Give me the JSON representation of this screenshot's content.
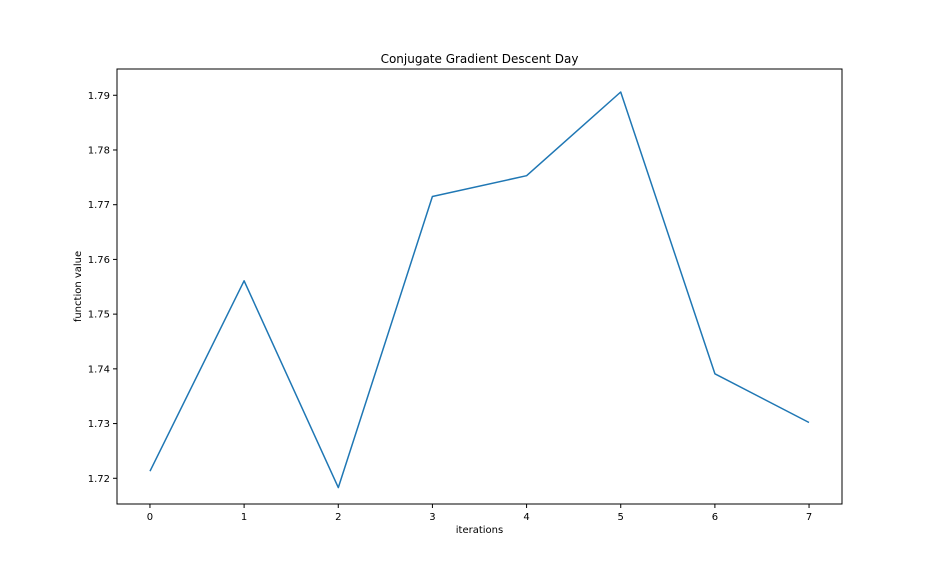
{
  "chart_data": {
    "type": "line",
    "title": "Conjugate Gradient Descent Day",
    "xlabel": "iterations",
    "ylabel": "function value",
    "x": [
      0,
      1,
      2,
      3,
      4,
      5,
      6,
      7
    ],
    "series": [
      {
        "values": [
          1.7213,
          1.7561,
          1.7183,
          1.7715,
          1.7753,
          1.7906,
          1.7391,
          1.7302
        ],
        "color": "#1f77b4"
      }
    ],
    "xlim": [
      -0.35,
      7.35
    ],
    "ylim": [
      1.7153,
      1.7948
    ],
    "xticks": [
      0,
      1,
      2,
      3,
      4,
      5,
      6,
      7
    ],
    "xtick_labels": [
      "0",
      "1",
      "2",
      "3",
      "4",
      "5",
      "6",
      "7"
    ],
    "yticks": [
      1.72,
      1.73,
      1.74,
      1.75,
      1.76,
      1.77,
      1.78,
      1.79
    ],
    "ytick_labels": [
      "1.72",
      "1.73",
      "1.74",
      "1.75",
      "1.76",
      "1.77",
      "1.78",
      "1.79"
    ],
    "grid": false,
    "legend": false
  }
}
